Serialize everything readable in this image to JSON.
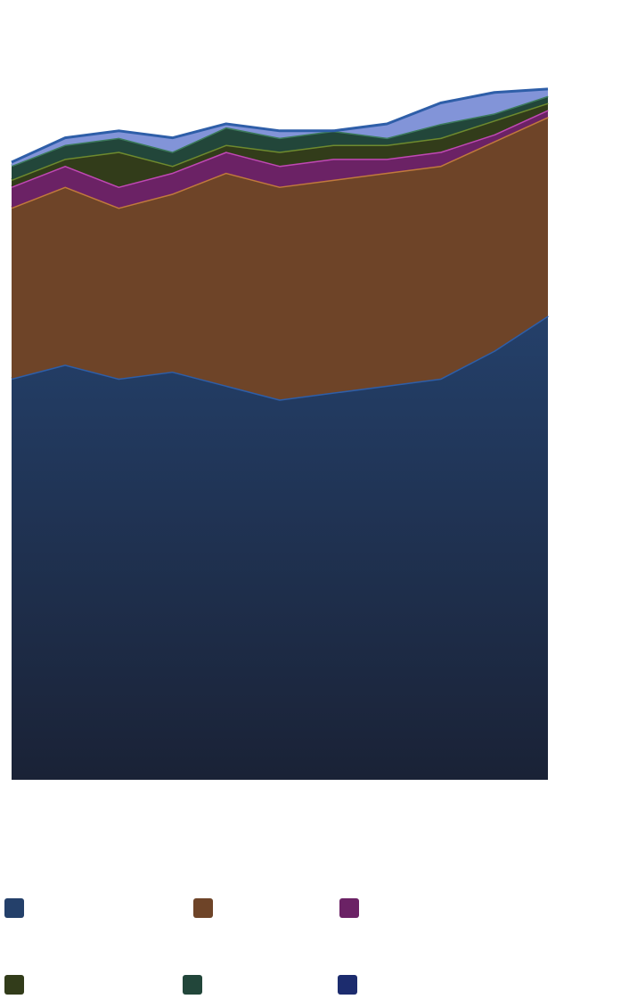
{
  "chart_data": {
    "type": "area",
    "stacked": true,
    "title": "",
    "xlabel": "",
    "ylabel": "",
    "x": [
      1,
      2,
      3,
      4,
      5,
      6,
      7,
      8,
      9,
      10,
      11
    ],
    "ylim": [
      0,
      100
    ],
    "grid": false,
    "legend_position": "bottom",
    "series": [
      {
        "color": "#24406a",
        "line": "#2e5ea8",
        "values": [
          57.5,
          59.5,
          57.5,
          58.5,
          56.5,
          54.5,
          55.5,
          56.5,
          57.5,
          61.5,
          66.5
        ]
      },
      {
        "color": "#6e4428",
        "line": "#c07a3c",
        "values": [
          24.5,
          25.5,
          24.5,
          25.5,
          30.5,
          30.5,
          30.5,
          30.5,
          30.5,
          30.0,
          28.5
        ]
      },
      {
        "color": "#6b2265",
        "line": "#c048b4",
        "values": [
          3.0,
          3.0,
          3.0,
          3.0,
          3.0,
          3.0,
          3.0,
          2.0,
          2.0,
          1.0,
          1.0
        ]
      },
      {
        "color": "#323c1a",
        "line": "#6e8a2e",
        "values": [
          1.0,
          1.0,
          5.0,
          1.0,
          1.0,
          2.0,
          2.0,
          2.0,
          2.0,
          2.0,
          1.0
        ]
      },
      {
        "color": "#22463a",
        "line": "#3c7a5c",
        "values": [
          2.0,
          2.0,
          2.0,
          2.0,
          2.5,
          2.0,
          2.0,
          1.0,
          2.0,
          1.0,
          1.0
        ]
      },
      {
        "color": "#8294d8",
        "line": "#2e5ea8",
        "values": [
          0.5,
          1.0,
          1.0,
          2.0,
          0.5,
          1.0,
          0.0,
          2.0,
          3.0,
          3.0,
          1.0
        ]
      }
    ],
    "legend": [
      {
        "color": "#24406a"
      },
      {
        "color": "#6e4428"
      },
      {
        "color": "#6b2265"
      },
      {
        "color": "#323c1a"
      },
      {
        "color": "#22463a"
      },
      {
        "color": "#1c2c6e"
      }
    ]
  }
}
